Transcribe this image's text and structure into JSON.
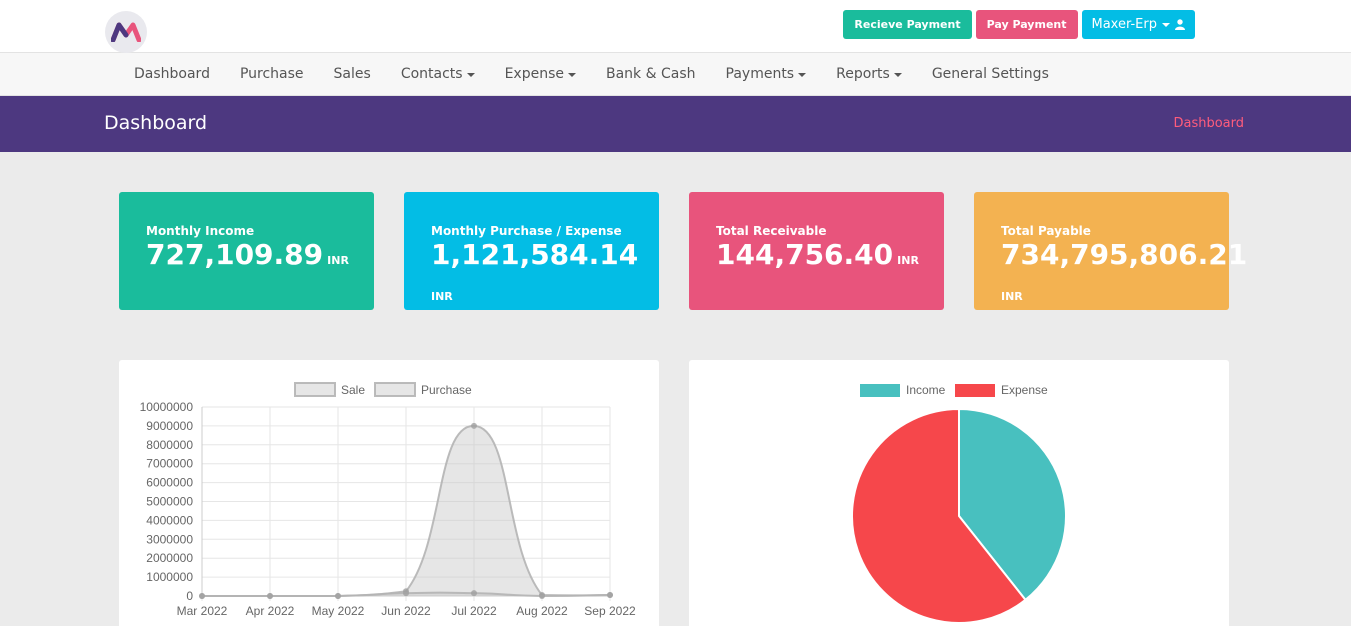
{
  "topbar": {
    "receive_label": "Recieve Payment",
    "pay_label": "Pay Payment",
    "account_label": "Maxer-Erp",
    "logo_icon": "maxer-logo-icon",
    "user_icon": "user-icon",
    "colors": {
      "receive": "#1abc9c",
      "pay": "#e8547c",
      "account": "#03bde5"
    }
  },
  "nav": {
    "items": [
      {
        "label": "Dashboard",
        "dropdown": false
      },
      {
        "label": "Purchase",
        "dropdown": false
      },
      {
        "label": "Sales",
        "dropdown": false
      },
      {
        "label": "Contacts",
        "dropdown": true
      },
      {
        "label": "Expense",
        "dropdown": true
      },
      {
        "label": "Bank & Cash",
        "dropdown": false
      },
      {
        "label": "Payments",
        "dropdown": true
      },
      {
        "label": "Reports",
        "dropdown": true
      },
      {
        "label": "General Settings",
        "dropdown": false
      }
    ]
  },
  "header": {
    "title": "Dashboard",
    "breadcrumb": "Dashboard",
    "background": "#4d3880"
  },
  "cards": [
    {
      "label": "Monthly Income",
      "value": "727,109.89",
      "unit": "INR",
      "color": "#1abc9c"
    },
    {
      "label": "Monthly Purchase / Expense",
      "value": "1,121,584.14",
      "unit": "INR",
      "color": "#03bde5"
    },
    {
      "label": "Total Receivable",
      "value": "144,756.40",
      "unit": "INR",
      "color": "#e8547c"
    },
    {
      "label": "Total Payable",
      "value": "734,795,806.21",
      "unit": "INR",
      "color": "#f3b251"
    }
  ],
  "chart_data": [
    {
      "type": "area",
      "categories": [
        "Mar 2022",
        "Apr 2022",
        "May 2022",
        "Jun 2022",
        "Jul 2022",
        "Aug 2022",
        "Sep 2022"
      ],
      "series": [
        {
          "name": "Sale",
          "values": [
            0,
            0,
            0,
            150000,
            150000,
            0,
            50000
          ]
        },
        {
          "name": "Purchase",
          "values": [
            0,
            0,
            0,
            250000,
            9000000,
            50000,
            50000
          ]
        }
      ],
      "ylim": [
        0,
        10000000
      ],
      "yticks": [
        0,
        1000000,
        2000000,
        3000000,
        4000000,
        5000000,
        6000000,
        7000000,
        8000000,
        9000000,
        10000000
      ],
      "grid": true,
      "legend": "top"
    },
    {
      "type": "pie",
      "labels": [
        "Income",
        "Expense"
      ],
      "values": [
        727109.89,
        1121584.14
      ],
      "colors": [
        "#48c0bf",
        "#f6474b"
      ],
      "legend": "top"
    }
  ]
}
